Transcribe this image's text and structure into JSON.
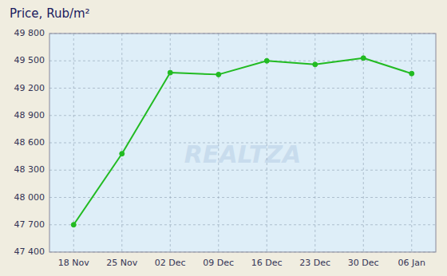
{
  "chart_data": {
    "type": "line",
    "title": "Price, Rub/m²",
    "categories": [
      "18 Nov",
      "25 Nov",
      "02 Dec",
      "09 Dec",
      "16 Dec",
      "23 Dec",
      "30 Dec",
      "06 Jan"
    ],
    "values": [
      47700,
      48480,
      49370,
      49350,
      49500,
      49460,
      49530,
      49360
    ],
    "color": "#22bb22",
    "marker": "circle",
    "ylim": [
      47400,
      49800
    ],
    "yticks": [
      {
        "value": 47400,
        "label": "47 400"
      },
      {
        "value": 47700,
        "label": "47 700"
      },
      {
        "value": 48000,
        "label": "48 000"
      },
      {
        "value": 48300,
        "label": "48 300"
      },
      {
        "value": 48600,
        "label": "48 600"
      },
      {
        "value": 48900,
        "label": "48 900"
      },
      {
        "value": 49200,
        "label": "49 200"
      },
      {
        "value": 49500,
        "label": "49 500"
      },
      {
        "value": 49800,
        "label": "49 800"
      }
    ],
    "grid": true,
    "annotations": [
      "REALTZA"
    ]
  }
}
